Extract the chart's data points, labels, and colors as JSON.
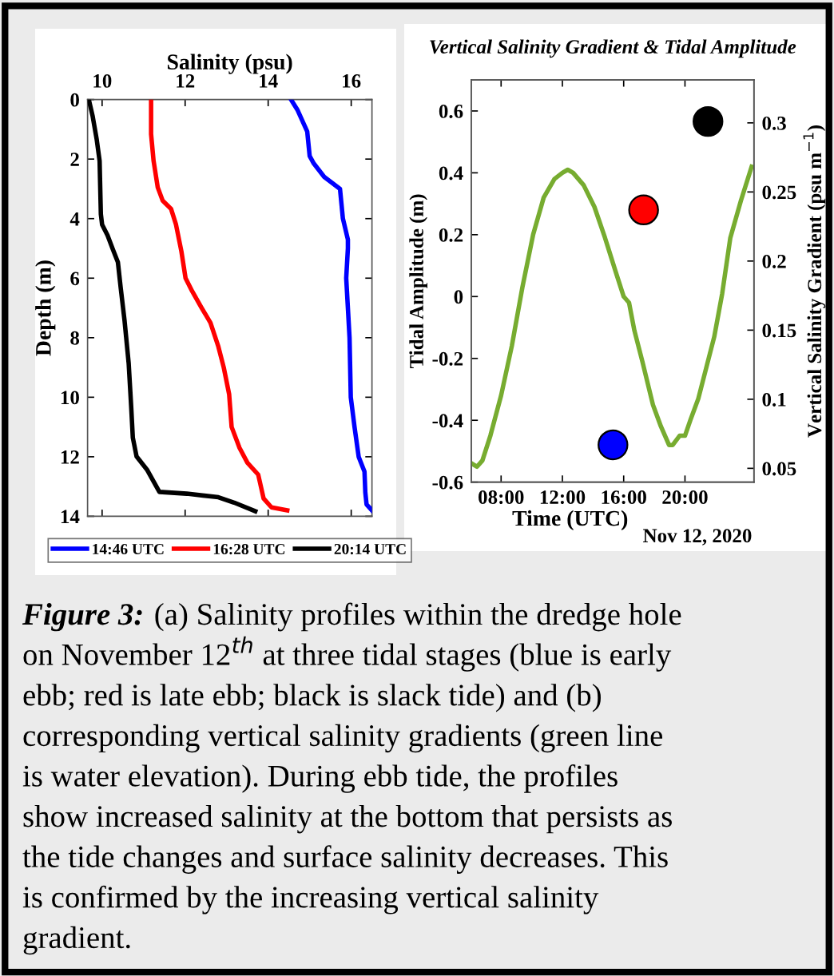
{
  "chart_data": [
    {
      "type": "line",
      "xlabel": "Salinity (psu)",
      "ylabel": "Depth (m)",
      "xlim": [
        9.65,
        16.5
      ],
      "xticks": [
        10,
        12,
        14,
        16
      ],
      "ylim": [
        14,
        0
      ],
      "yticks": [
        0,
        2,
        4,
        6,
        8,
        10,
        12,
        14
      ],
      "legend": "bottom",
      "series": [
        {
          "name": "14:46 UTC",
          "color": "#0000ff",
          "x": [
            14.55,
            14.71,
            14.94,
            15.0,
            15.1,
            15.35,
            15.73,
            15.8,
            15.92,
            15.92,
            15.88,
            15.96,
            15.99,
            16.08,
            16.18,
            16.32,
            16.34,
            16.37,
            16.5
          ],
          "values": [
            0,
            0.36,
            1.07,
            1.9,
            2.15,
            2.6,
            3.0,
            4.0,
            4.7,
            5.0,
            6.0,
            8.0,
            10.0,
            11.0,
            12.0,
            12.5,
            13.2,
            13.6,
            13.8
          ]
        },
        {
          "name": "16:28 UTC",
          "color": "#ff0000",
          "x": [
            11.18,
            11.18,
            11.24,
            11.34,
            11.46,
            11.66,
            11.78,
            11.91,
            12.01,
            12.17,
            12.39,
            12.61,
            12.8,
            12.93,
            13.06,
            13.12,
            13.31,
            13.5,
            13.76,
            13.89,
            14.08,
            14.46
          ],
          "values": [
            0,
            1.16,
            2.06,
            2.95,
            3.4,
            3.67,
            4.2,
            5.1,
            6.0,
            6.44,
            6.98,
            7.5,
            8.3,
            9.0,
            9.9,
            11.0,
            11.7,
            12.2,
            12.6,
            13.4,
            13.7,
            13.8
          ]
        },
        {
          "name": "20:14 UTC",
          "color": "#000000",
          "x": [
            9.68,
            9.77,
            9.87,
            9.94,
            9.97,
            10.0,
            10.13,
            10.25,
            10.38,
            10.45,
            10.54,
            10.64,
            10.7,
            10.74,
            10.83,
            11.08,
            11.38,
            12.04,
            12.8,
            13.18,
            13.69
          ],
          "values": [
            0,
            0.54,
            1.34,
            2.06,
            3.85,
            4.2,
            4.56,
            5.0,
            5.46,
            6.35,
            7.42,
            8.86,
            10.3,
            11.36,
            11.99,
            12.43,
            13.18,
            13.24,
            13.36,
            13.54,
            13.83
          ]
        }
      ],
      "annotations": [
        "Figure 3:",
        "(a) Salinity profiles within the dredge hole",
        "on November 12$^{th}$ at three tidal stages (blue is early",
        "ebb; red is late ebb; black is slack tide) and (b)",
        "corresponding vertical salinity gradients (green line",
        "is water elevation). During ebb tide, the profiles",
        "show increased salinity at the bottom that persists as",
        "the tide changes and surface salinity decreases. This",
        "is confirmed by the increasing vertical salinity",
        "gradient."
      ]
    },
    {
      "type": "line",
      "title": "Vertical Salinity Gradient & Tidal Amplitude",
      "xlabel": "Time (UTC)",
      "ylabel": "Tidal Amplitude (m)",
      "y2label": "Vertical Salinity Gradient (psu m$^{−1}$)",
      "xlim": [
        6.05,
        24.5
      ],
      "xticks": [
        {
          "value": 8,
          "label": "08:00"
        },
        {
          "value": 12,
          "label": "12:00"
        },
        {
          "value": 16,
          "label": "16:00"
        },
        {
          "value": 20,
          "label": "20:00"
        }
      ],
      "ylim": [
        -0.6,
        0.7
      ],
      "yticks": [
        -0.6,
        -0.4,
        -0.2,
        0,
        0.2,
        0.4,
        0.6
      ],
      "y2lim": [
        0.04,
        0.331
      ],
      "y2ticks": [
        0.05,
        0.1,
        0.15,
        0.2,
        0.25,
        0.3
      ],
      "series": [
        {
          "type": "line",
          "color": "#77ac30",
          "x": [
            6.09,
            6.43,
            6.78,
            7.3,
            8.0,
            8.7,
            9.39,
            10.09,
            10.78,
            11.48,
            12.0,
            12.35,
            12.7,
            13.39,
            14.09,
            14.78,
            15.48,
            16.0,
            16.35,
            16.7,
            17.22,
            17.91,
            18.43,
            18.96,
            19.2,
            19.65,
            20.0,
            20.35,
            20.87,
            21.39,
            21.91,
            22.43,
            22.96,
            23.65,
            24.35
          ],
          "values": [
            -0.54,
            -0.55,
            -0.53,
            -0.45,
            -0.32,
            -0.16,
            0.03,
            0.2,
            0.32,
            0.38,
            0.4,
            0.41,
            0.4,
            0.36,
            0.29,
            0.19,
            0.08,
            0.0,
            -0.02,
            -0.11,
            -0.21,
            -0.35,
            -0.42,
            -0.48,
            -0.48,
            -0.45,
            -0.45,
            -0.4,
            -0.33,
            -0.23,
            -0.13,
            0.01,
            0.19,
            0.31,
            0.42
          ]
        },
        {
          "type": "scatter",
          "axis": "y2",
          "marker": "circle",
          "x": [
            15.3,
            17.3,
            21.5
          ],
          "values": [
            0.067,
            0.237,
            0.301
          ],
          "colors": [
            "#0000ff",
            "#ff0000",
            "#000000"
          ]
        }
      ],
      "annotations": [
        "Nov 12, 2020"
      ]
    }
  ]
}
